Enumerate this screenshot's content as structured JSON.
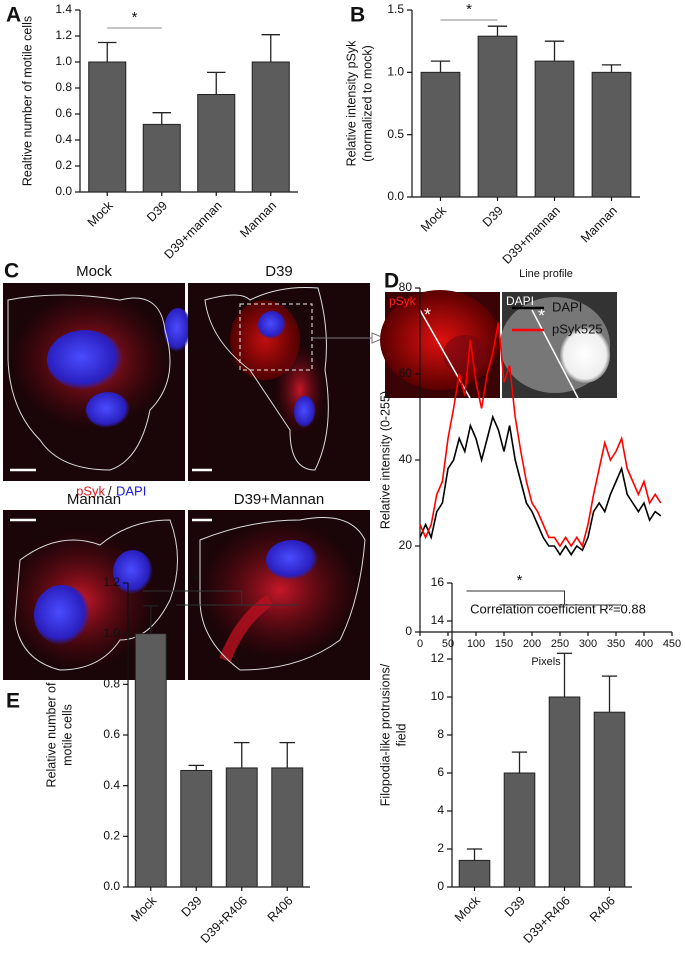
{
  "panel_labels": [
    "A",
    "B",
    "C",
    "D",
    "E"
  ],
  "micrographs": {
    "C": {
      "labels": [
        "Mock",
        "D39",
        "Mannan",
        "D39+Mannan"
      ],
      "legend": [
        "pSyk",
        "/",
        "DAPI"
      ]
    },
    "D": {
      "labels": [
        "pSyk",
        "DAPI"
      ],
      "marker": "*"
    }
  },
  "chart_data": [
    {
      "type": "bar",
      "ylabel": [
        "Realtive number of motile cells"
      ],
      "categories": [
        "Mock",
        "D39",
        "D39+mannan",
        "Mannan"
      ],
      "values": [
        1.0,
        0.52,
        0.75,
        1.0
      ],
      "errors": [
        0.15,
        0.09,
        0.17,
        0.21
      ],
      "color": "#5c5c5c",
      "ylim": [
        0,
        1.4
      ],
      "yticks": [
        {
          "value": 0,
          "label": "0.0"
        },
        0.2,
        0.4,
        0.6,
        0.8,
        {
          "value": 1,
          "label": "1.0"
        },
        1.2,
        1.4
      ],
      "significance": "*"
    },
    {
      "type": "bar",
      "ylabel": [
        "Relative intensity pSyk",
        "(normalized to mock)"
      ],
      "categories": [
        "Mock",
        "D39",
        "D39+mannan",
        "Mannan"
      ],
      "values": [
        1.0,
        1.29,
        1.09,
        1.0
      ],
      "errors": [
        0.09,
        0.08,
        0.16,
        0.06
      ],
      "color": "#5c5c5c",
      "ylim": [
        0,
        1.5
      ],
      "yticks": [
        {
          "value": 0,
          "label": "0.0"
        },
        0.5,
        {
          "value": 1,
          "label": "1.0"
        },
        1.5
      ],
      "significance": "*"
    },
    {
      "type": "line",
      "title": "Line profile",
      "xlabel": "Pixels",
      "ylabel": [
        "Relative intensity (0-255)"
      ],
      "annotation": "Correlation coefficient R²=0.88",
      "x": [
        0,
        10,
        20,
        30,
        40,
        50,
        60,
        70,
        80,
        90,
        100,
        110,
        120,
        130,
        140,
        150,
        160,
        170,
        180,
        190,
        200,
        210,
        220,
        230,
        240,
        250,
        260,
        270,
        280,
        290,
        300,
        310,
        320,
        330,
        340,
        350,
        360,
        370,
        380,
        390,
        400,
        410,
        420,
        430
      ],
      "series": [
        {
          "name": "DAPI",
          "color": "#000000",
          "values": [
            22,
            25,
            22,
            28,
            30,
            38,
            40,
            45,
            42,
            48,
            45,
            40,
            45,
            50,
            47,
            42,
            48,
            40,
            35,
            30,
            28,
            25,
            22,
            20,
            20,
            18,
            20,
            18,
            20,
            19,
            22,
            28,
            30,
            28,
            32,
            35,
            38,
            32,
            30,
            28,
            30,
            26,
            28,
            27
          ]
        },
        {
          "name": "pSyk525",
          "color": "#ff0000",
          "values": [
            25,
            22,
            25,
            32,
            35,
            45,
            52,
            60,
            55,
            68,
            58,
            52,
            60,
            65,
            72,
            58,
            62,
            50,
            42,
            35,
            30,
            28,
            25,
            22,
            22,
            20,
            22,
            20,
            22,
            20,
            25,
            32,
            38,
            44,
            40,
            42,
            45,
            38,
            35,
            32,
            35,
            30,
            32,
            30
          ]
        }
      ],
      "xlim": [
        0,
        450
      ],
      "xticks": [
        0,
        50,
        100,
        150,
        200,
        250,
        300,
        350,
        400,
        450
      ],
      "ylim": [
        0,
        80
      ],
      "yticks": [
        0,
        20,
        40,
        60,
        80
      ]
    },
    {
      "type": "bar",
      "ylabel": [
        "Relative number of",
        "motile cells"
      ],
      "categories": [
        "Mock",
        "D39",
        "D39+R406",
        "R406"
      ],
      "values": [
        1.0,
        0.46,
        0.47,
        0.47
      ],
      "errors": [
        0.11,
        0.02,
        0.1,
        0.1
      ],
      "color": "#5c5c5c",
      "ylim": [
        0,
        1.2
      ],
      "yticks": [
        {
          "value": 0,
          "label": "0.0"
        },
        0.2,
        0.4,
        0.6,
        0.8,
        {
          "value": 1,
          "label": "1.0"
        },
        1.2
      ],
      "significance": "*"
    },
    {
      "type": "bar",
      "ylabel": [
        "Filopodia-like protrusions/",
        "field"
      ],
      "categories": [
        "Mock",
        "D39",
        "D39+R406",
        "R406"
      ],
      "values": [
        1.4,
        6.0,
        10.0,
        9.2
      ],
      "errors": [
        0.6,
        1.1,
        2.3,
        1.9
      ],
      "color": "#5c5c5c",
      "ylim": [
        0,
        16
      ],
      "yticks": [
        0,
        2,
        4,
        6,
        8,
        10,
        12,
        14,
        16
      ],
      "significance": "*"
    }
  ]
}
